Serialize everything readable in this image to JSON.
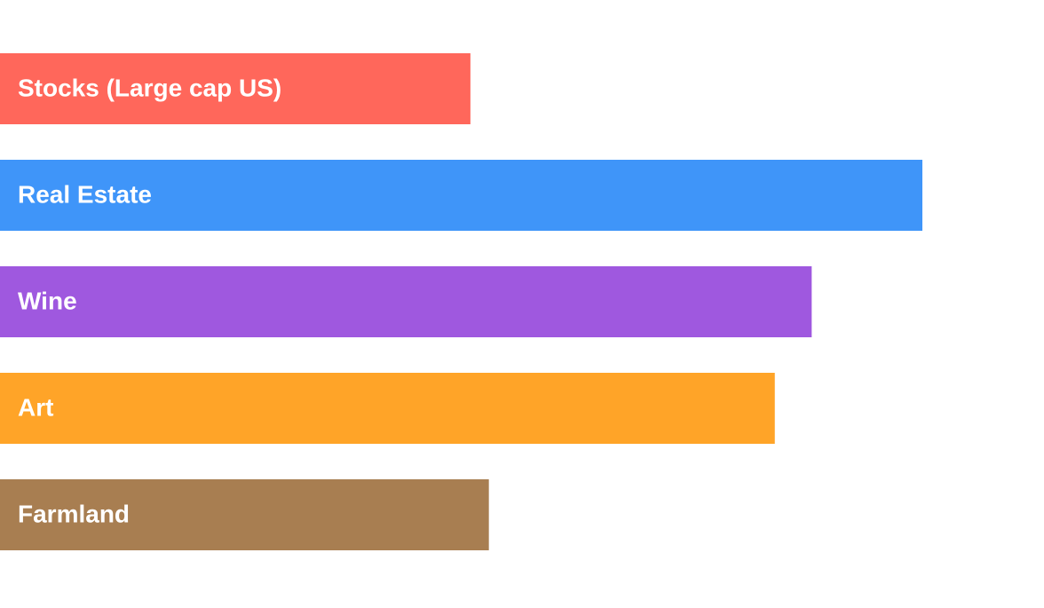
{
  "chart_data": {
    "type": "bar",
    "orientation": "horizontal",
    "categories": [
      "Stocks (Large cap US)",
      "Real Estate",
      "Wine",
      "Art",
      "Farmland"
    ],
    "values": [
      51,
      100,
      88,
      84,
      53
    ],
    "colors": [
      "#ff675b",
      "#3f95f9",
      "#9f58df",
      "#ffa428",
      "#a87e51"
    ]
  }
}
